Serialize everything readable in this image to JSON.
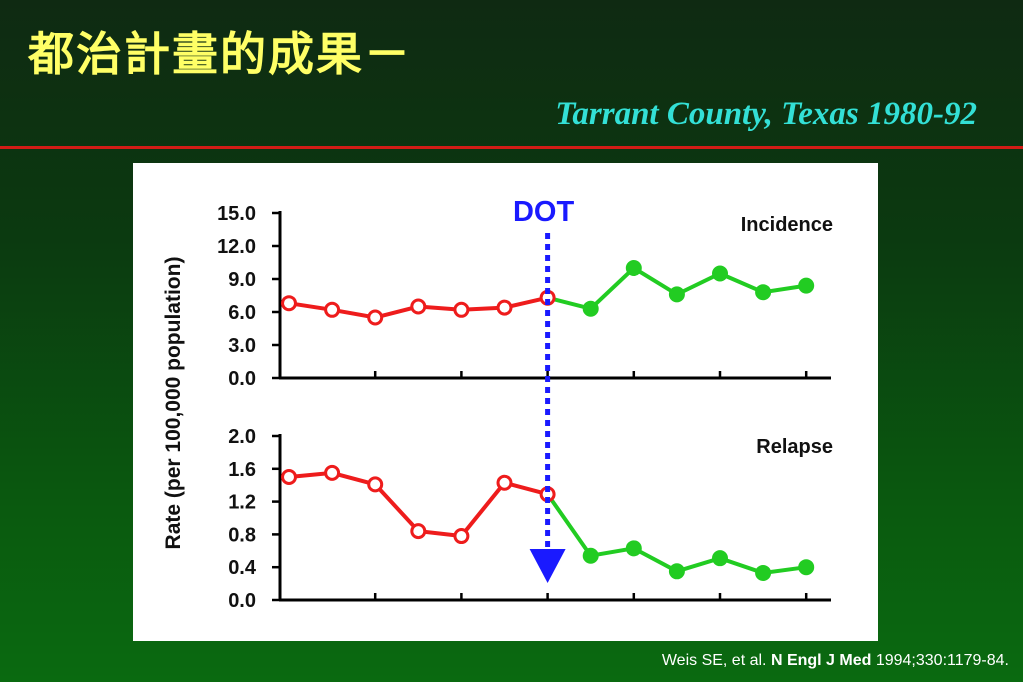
{
  "slide": {
    "title": "都治計畫的成果－",
    "subtitle": "Tarrant County, Texas 1980-92",
    "citation_prefix": "Weis SE, et al. ",
    "citation_journal": "N Engl J Med",
    "citation_suffix": " 1994;330:1179-84."
  },
  "colors": {
    "title": "#ffff66",
    "subtitle": "#33e0d6",
    "rule": "#d21c16",
    "pre_dot": "#ee1c1c",
    "post_dot": "#22cc22",
    "dot_marker": "#1a1aff"
  },
  "chart_data": {
    "y_axis_label": "Rate (per 100,000 population)",
    "marker_label": "DOT",
    "marker_index": 6,
    "charts": [
      {
        "type": "line",
        "name": "Incidence",
        "ylim": [
          0,
          15
        ],
        "yticks": [
          "15.0",
          "12.0",
          "9.0",
          "6.0",
          "3.0",
          "0.0"
        ],
        "ytick_values": [
          15,
          12,
          9,
          6,
          3,
          0
        ],
        "values": [
          6.8,
          6.2,
          5.5,
          6.5,
          6.2,
          6.4,
          7.3,
          6.3,
          10.0,
          7.6,
          9.5,
          7.8,
          8.4
        ]
      },
      {
        "type": "line",
        "name": "Relapse",
        "ylim": [
          0,
          2
        ],
        "yticks": [
          "2.0",
          "1.6",
          "1.2",
          "0.8",
          "0.4",
          "0.0"
        ],
        "ytick_values": [
          2.0,
          1.6,
          1.2,
          0.8,
          0.4,
          0.0
        ],
        "values": [
          1.5,
          1.55,
          1.41,
          0.84,
          0.78,
          1.43,
          1.29,
          0.54,
          0.63,
          0.35,
          0.51,
          0.33,
          0.4
        ]
      }
    ]
  }
}
